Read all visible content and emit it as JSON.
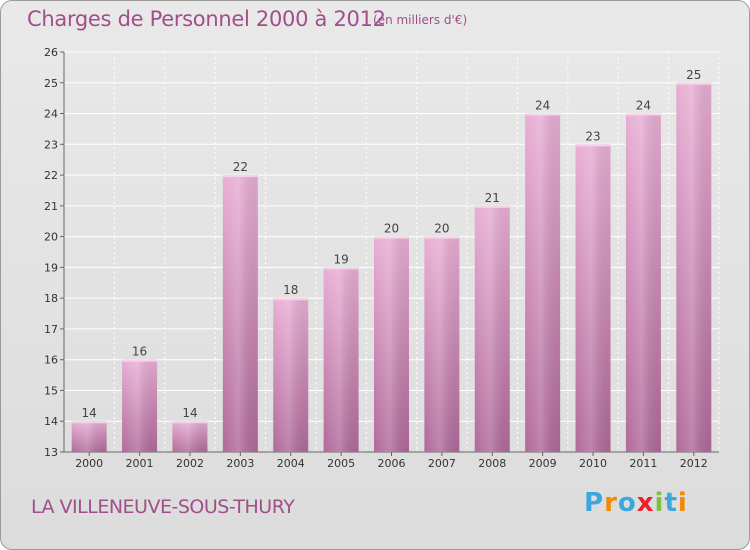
{
  "header": {
    "title": "Charges de Personnel 2000 à 2012",
    "subtitle": "(en milliers d'€)"
  },
  "footer": {
    "location": "LA VILLENEUVE-SOUS-THURY",
    "logo": "Proxiti"
  },
  "colors": {
    "title": "#a04f8a",
    "bar_light": "#e3a9cf",
    "bar_dark": "#b46b9c",
    "logo_letters": [
      "#3aa7e0",
      "#f08a00",
      "#3aa7e0",
      "#e8212a",
      "#7cc242",
      "#3aa7e0",
      "#f08a00"
    ]
  },
  "chart_data": {
    "type": "bar",
    "title": "Charges de Personnel 2000 à 2012",
    "subtitle": "(en milliers d'€)",
    "categories": [
      "2000",
      "2001",
      "2002",
      "2003",
      "2004",
      "2005",
      "2006",
      "2007",
      "2008",
      "2009",
      "2010",
      "2011",
      "2012"
    ],
    "values": [
      14,
      16,
      14,
      22,
      18,
      19,
      20,
      20,
      21,
      24,
      23,
      24,
      25
    ],
    "ylim": [
      13,
      26
    ],
    "yticks": [
      13,
      14,
      15,
      16,
      17,
      18,
      19,
      20,
      21,
      22,
      23,
      24,
      25,
      26
    ],
    "grid": true,
    "data_labels": true
  }
}
